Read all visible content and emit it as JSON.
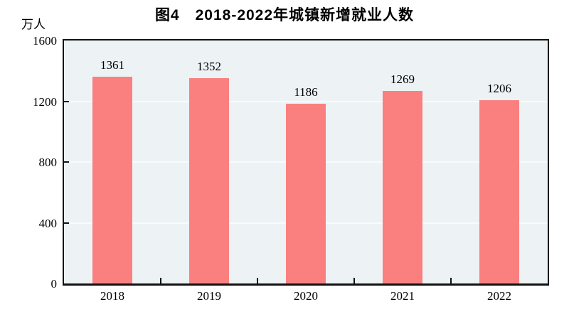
{
  "chart_data": {
    "type": "bar",
    "title": "图4　2018-2022年城镇新增就业人数",
    "unit_label": "万人",
    "categories": [
      "2018",
      "2019",
      "2020",
      "2021",
      "2022"
    ],
    "values": [
      1361,
      1352,
      1186,
      1269,
      1206
    ],
    "xlabel": "",
    "ylabel": "万人",
    "ylim": [
      0,
      1600
    ],
    "yticks": [
      0,
      400,
      800,
      1200,
      1600
    ],
    "grid": true,
    "legend_position": "none",
    "colors": {
      "bar": "#fa8080",
      "plot_background": "#edf2f5",
      "gridline": "#f8fbfc",
      "axis": "#111111",
      "text": "#000000",
      "page_background": "#ffffff"
    }
  }
}
